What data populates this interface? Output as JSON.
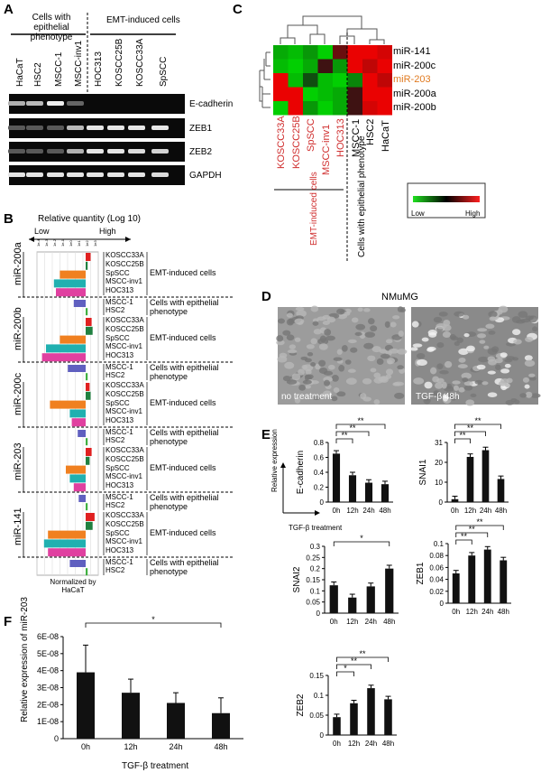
{
  "panels": {
    "A": "A",
    "B": "B",
    "C": "C",
    "D": "D",
    "E": "E",
    "F": "F"
  },
  "panelA": {
    "group1": "Cells with epithelial phenotype",
    "group2": "EMT-induced cells",
    "lanes": [
      "HaCaT",
      "HSC2",
      "MSCC-1",
      "MSCC-inv1",
      "HOC313",
      "KOSCC25B",
      "KOSCC33A",
      "SpSCC"
    ],
    "rows": [
      "E-cadherin",
      "ZEB1",
      "ZEB2",
      "GAPDH"
    ]
  },
  "panelB": {
    "title": "Relative quantity (Log 10)",
    "low": "Low",
    "high": "High",
    "footer": "Normalized by HaCaT",
    "mirnas": [
      "miR-200a",
      "miR-200b",
      "miR-200c",
      "miR-203",
      "miR-141"
    ],
    "emt_lines": [
      "KOSCC33A",
      "KOSCC25B",
      "SpSCC",
      "MSCC-inv1",
      "HOC313"
    ],
    "epi_lines": [
      "MSCC-1",
      "HSC2"
    ],
    "emt_label": "EMT-induced cells",
    "epi_label": "Cells with epithelial phenotype",
    "bars": [
      [
        0.25,
        0.1,
        -1.3,
        -1.6,
        -1.5,
        -0.6,
        0.1
      ],
      [
        0.3,
        0.35,
        -1.3,
        -2.0,
        -2.2,
        -0.9,
        0.1
      ],
      [
        0.2,
        0.25,
        -1.8,
        -0.8,
        -0.7,
        -0.4,
        0.1
      ],
      [
        0.3,
        0.2,
        -1.0,
        -0.8,
        -0.6,
        -0.35,
        0.1
      ],
      [
        0.45,
        0.35,
        -1.9,
        -2.1,
        -1.9,
        -0.8,
        0.1
      ]
    ]
  },
  "panelC": {
    "rows": [
      "miR-141",
      "miR-200c",
      "miR-203",
      "miR-200a",
      "miR-200b"
    ],
    "cols": [
      "KOSCC33A",
      "KOSCC25B",
      "SpSCC",
      "MSCC-inv1",
      "HOC313",
      "MSCC-1",
      "HSC2",
      "HaCaT"
    ],
    "emt_label": "EMT-induced cells",
    "epi_label": "Cells with epithelial phenotype",
    "low": "Low",
    "high": "High"
  },
  "panelD": {
    "title": "NMuMG",
    "left_caption": "no treatment",
    "right_caption": "TGF-β 48h"
  },
  "panelE": {
    "ylabel": "Relative expression",
    "xlabel": "TGF-β treatment",
    "categories": [
      "0h",
      "12h",
      "24h",
      "48h"
    ],
    "sig": "**",
    "sig1": "*"
  },
  "panelF": {
    "xlabel": "TGF-β treatment",
    "ylabel": "Relative expression of miR-203",
    "sig": "*"
  },
  "chart_data": [
    {
      "type": "bar",
      "ylabel": "E-cadherin",
      "categories": [
        "0h",
        "12h",
        "24h",
        "48h"
      ],
      "values": [
        0.65,
        0.36,
        0.26,
        0.24
      ],
      "ylim": [
        0,
        0.8
      ],
      "yticks": [
        "0",
        "0.2",
        "0.4",
        "0.6",
        "0.8"
      ]
    },
    {
      "type": "bar",
      "ylabel": "SNAI1",
      "categories": [
        "0h",
        "12h",
        "24h",
        "48h"
      ],
      "values": [
        1.5,
        23.5,
        27,
        12
      ],
      "ylim": [
        0,
        31
      ],
      "yticks": [
        "0",
        "10",
        "20",
        "31"
      ]
    },
    {
      "type": "bar",
      "ylabel": "SNAI2",
      "categories": [
        "0h",
        "12h",
        "24h",
        "48h"
      ],
      "values": [
        0.125,
        0.07,
        0.12,
        0.2
      ],
      "ylim": [
        0,
        0.3
      ],
      "yticks": [
        "0",
        "0.05",
        "0.1",
        "0.15",
        "0.2",
        "0.25",
        "0.3"
      ]
    },
    {
      "type": "bar",
      "ylabel": "ZEB1",
      "categories": [
        "0h",
        "12h",
        "24h",
        "48h"
      ],
      "values": [
        0.05,
        0.08,
        0.09,
        0.072
      ],
      "ylim": [
        0,
        0.1
      ],
      "yticks": [
        "0",
        "0.02",
        "0.04",
        "0.06",
        "0.08",
        "0.1"
      ]
    },
    {
      "type": "bar",
      "ylabel": "ZEB2",
      "categories": [
        "0h",
        "12h",
        "24h",
        "48h"
      ],
      "values": [
        0.045,
        0.08,
        0.118,
        0.09
      ],
      "ylim": [
        0,
        0.15
      ],
      "yticks": [
        "0",
        "0.05",
        "0.1",
        "0.15"
      ]
    },
    {
      "type": "bar",
      "ylabel": "Relative expression of miR-203",
      "xlabel": "TGF-β treatment",
      "categories": [
        "0h",
        "12h",
        "24h",
        "48h"
      ],
      "values": [
        3.9e-08,
        2.7e-08,
        2.1e-08,
        1.5e-08
      ],
      "errors": [
        1.6e-08,
        8e-09,
        6e-09,
        9e-09
      ],
      "ylim": [
        0,
        6e-08
      ],
      "yticks": [
        "0",
        "1E-08",
        "2E-08",
        "3E-08",
        "4E-08",
        "5E-08",
        "6E-08"
      ]
    }
  ]
}
